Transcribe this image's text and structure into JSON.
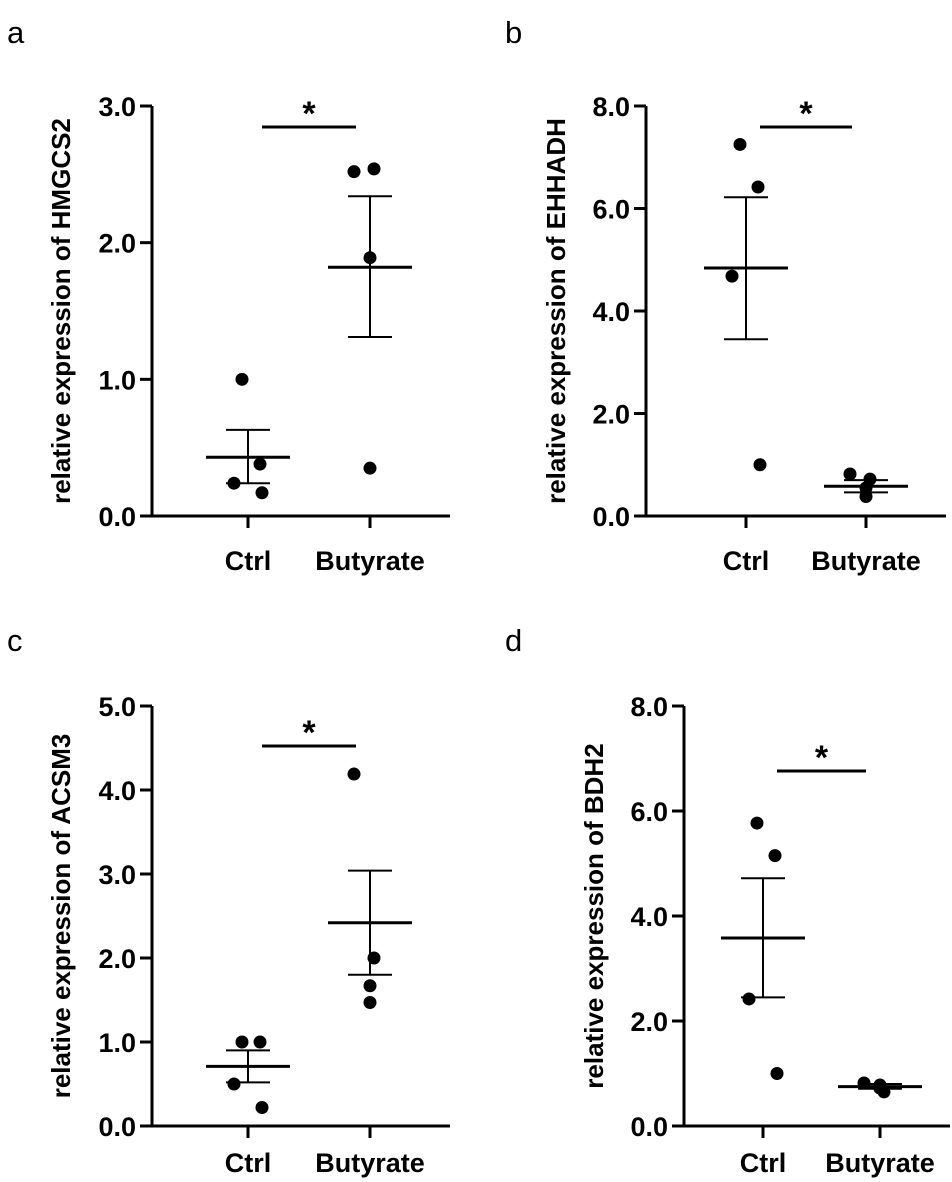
{
  "chart_data": [
    {
      "type": "scatter",
      "panel": "a",
      "categories": [
        "Ctrl",
        "Butyrate"
      ],
      "ylabel": "relative expression of HMGCS2",
      "ylim": [
        0,
        3.0
      ],
      "yticks": [
        "0.0",
        "1.0",
        "2.0",
        "3.0"
      ],
      "yticks_values": [
        0,
        1.0,
        2.0,
        3.0
      ],
      "groups": [
        {
          "category": "Ctrl",
          "points": [
            1.0,
            0.38,
            0.24,
            0.17
          ],
          "mean": 0.43,
          "sem_low": 0.24,
          "sem_high": 0.63
        },
        {
          "category": "Butyrate",
          "points": [
            2.52,
            2.54,
            1.89,
            0.35
          ],
          "mean": 1.82,
          "sem_low": 1.31,
          "sem_high": 2.34
        }
      ],
      "significance": "*"
    },
    {
      "type": "scatter",
      "panel": "b",
      "categories": [
        "Ctrl",
        "Butyrate"
      ],
      "ylabel": "relative expression of EHHADH",
      "ylim": [
        0,
        8.0
      ],
      "yticks": [
        "0.0",
        "2.0",
        "4.0",
        "6.0",
        "8.0"
      ],
      "yticks_values": [
        0,
        2.0,
        4.0,
        6.0,
        8.0
      ],
      "groups": [
        {
          "category": "Ctrl",
          "points": [
            7.25,
            6.42,
            4.68,
            1.0
          ],
          "mean": 4.84,
          "sem_low": 3.45,
          "sem_high": 6.22
        },
        {
          "category": "Butyrate",
          "points": [
            0.82,
            0.72,
            0.38,
            0.55
          ],
          "mean": 0.58,
          "sem_low": 0.46,
          "sem_high": 0.7
        }
      ],
      "significance": "*"
    },
    {
      "type": "scatter",
      "panel": "c",
      "categories": [
        "Ctrl",
        "Butyrate"
      ],
      "ylabel": "relative expression of ACSM3",
      "ylim": [
        0,
        5.0
      ],
      "yticks": [
        "0.0",
        "1.0",
        "2.0",
        "3.0",
        "4.0",
        "5.0"
      ],
      "yticks_values": [
        0,
        1.0,
        2.0,
        3.0,
        4.0,
        5.0
      ],
      "groups": [
        {
          "category": "Ctrl",
          "points": [
            1.0,
            1.0,
            0.5,
            0.22
          ],
          "mean": 0.71,
          "sem_low": 0.52,
          "sem_high": 0.9
        },
        {
          "category": "Butyrate",
          "points": [
            4.19,
            2.0,
            1.67,
            1.47
          ],
          "mean": 2.42,
          "sem_low": 1.8,
          "sem_high": 3.04
        }
      ],
      "significance": "*"
    },
    {
      "type": "scatter",
      "panel": "d",
      "categories": [
        "Ctrl",
        "Butyrate"
      ],
      "ylabel": "relative expression of BDH2",
      "ylim": [
        0,
        8.0
      ],
      "yticks": [
        "0.0",
        "2.0",
        "4.0",
        "6.0",
        "8.0"
      ],
      "yticks_values": [
        0,
        2.0,
        4.0,
        6.0,
        8.0
      ],
      "groups": [
        {
          "category": "Ctrl",
          "points": [
            5.77,
            5.15,
            2.42,
            1.0
          ],
          "mean": 3.58,
          "sem_low": 2.45,
          "sem_high": 4.72
        },
        {
          "category": "Butyrate",
          "points": [
            0.82,
            0.65,
            0.78,
            0.72
          ],
          "mean": 0.75,
          "sem_low": 0.71,
          "sem_high": 0.8
        }
      ],
      "significance": "*"
    }
  ]
}
